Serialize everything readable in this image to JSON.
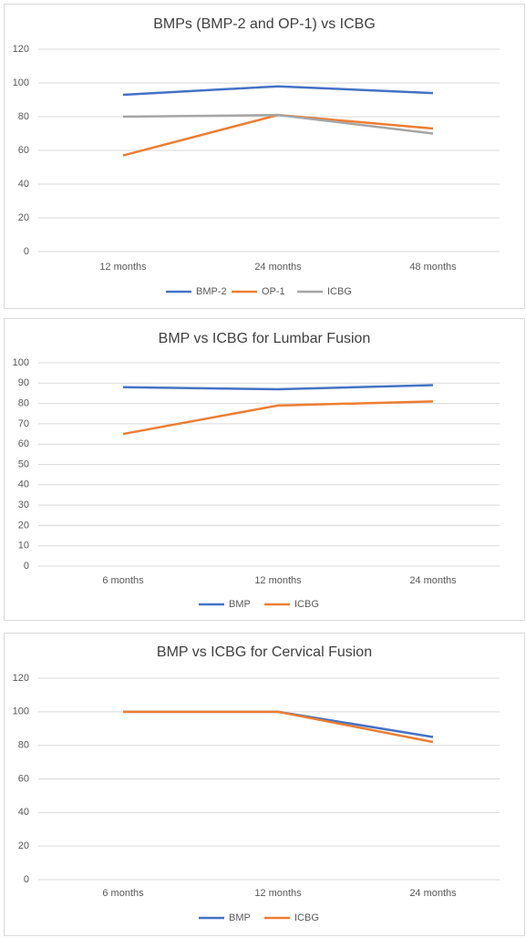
{
  "chart_data": [
    {
      "type": "line",
      "title": "BMPs (BMP-2 and OP-1) vs ICBG",
      "categories": [
        "12 months",
        "24 months",
        "48 months"
      ],
      "series": [
        {
          "name": "BMP-2",
          "color": "#4472c4",
          "values": [
            93,
            98,
            94
          ]
        },
        {
          "name": "OP-1",
          "color": "#ed7d31",
          "values": [
            57,
            81,
            73
          ]
        },
        {
          "name": "ICBG",
          "color": "#a5a5a5",
          "values": [
            80,
            81,
            70
          ]
        }
      ],
      "ylim": [
        0,
        120
      ],
      "yticks": [
        0,
        20,
        40,
        60,
        80,
        100,
        120
      ],
      "grid": true,
      "legend": "bottom"
    },
    {
      "type": "line",
      "title": "BMP vs ICBG for Lumbar Fusion",
      "categories": [
        "6 months",
        "12 months",
        "24 months"
      ],
      "series": [
        {
          "name": "BMP",
          "color": "#4472c4",
          "values": [
            88,
            87,
            89
          ]
        },
        {
          "name": "ICBG",
          "color": "#ed7d31",
          "values": [
            65,
            79,
            81
          ]
        }
      ],
      "ylim": [
        0,
        100
      ],
      "yticks": [
        0,
        10,
        20,
        30,
        40,
        50,
        60,
        70,
        80,
        90,
        100
      ],
      "grid": true,
      "legend": "bottom"
    },
    {
      "type": "line",
      "title": "BMP vs ICBG for Cervical Fusion",
      "categories": [
        "6 months",
        "12 months",
        "24 months"
      ],
      "series": [
        {
          "name": "BMP",
          "color": "#4472c4",
          "values": [
            100,
            100,
            85
          ]
        },
        {
          "name": "ICBG",
          "color": "#ed7d31",
          "values": [
            100,
            100,
            82
          ]
        }
      ],
      "ylim": [
        0,
        120
      ],
      "yticks": [
        0,
        20,
        40,
        60,
        80,
        100,
        120
      ],
      "grid": true,
      "legend": "bottom"
    }
  ]
}
